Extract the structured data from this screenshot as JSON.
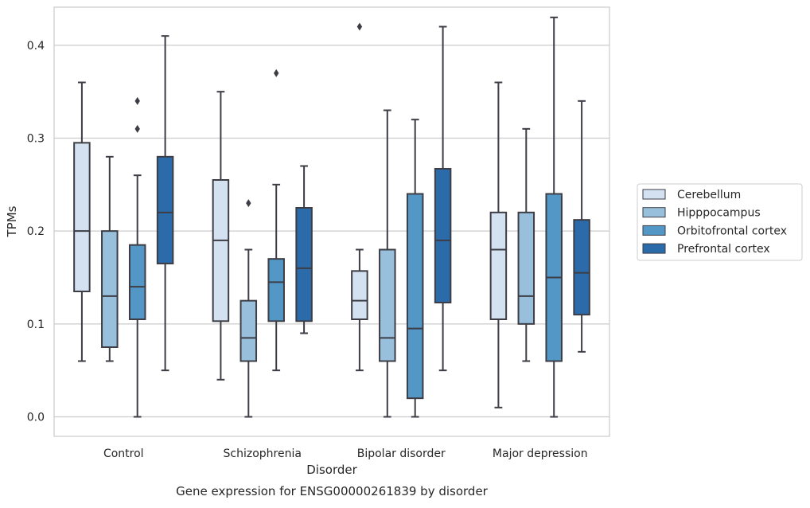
{
  "chart_data": {
    "type": "box",
    "title": "",
    "caption": "Gene expression for ENSG00000261839 by disorder",
    "xlabel": "Disorder",
    "ylabel": "TPMs",
    "ylim": [
      -0.021,
      0.441
    ],
    "yticks": [
      "0.0",
      "0.1",
      "0.2",
      "0.3",
      "0.4"
    ],
    "grid": "horizontal",
    "legend_position": "right",
    "categories": [
      "Control",
      "Schizophrenia",
      "Bipolar disorder",
      "Major depression"
    ],
    "series": [
      {
        "name": "Cerebellum",
        "color": "#d3e1f0",
        "boxes": [
          {
            "whislo": 0.06,
            "q1": 0.135,
            "med": 0.2,
            "q3": 0.295,
            "whishi": 0.36,
            "fliers": []
          },
          {
            "whislo": 0.04,
            "q1": 0.103,
            "med": 0.19,
            "q3": 0.255,
            "whishi": 0.35,
            "fliers": []
          },
          {
            "whislo": 0.05,
            "q1": 0.105,
            "med": 0.125,
            "q3": 0.157,
            "whishi": 0.18,
            "fliers": [
              0.42
            ]
          },
          {
            "whislo": 0.01,
            "q1": 0.105,
            "med": 0.18,
            "q3": 0.22,
            "whishi": 0.36,
            "fliers": []
          }
        ]
      },
      {
        "name": "Hipppocampus",
        "color": "#98c0dc",
        "boxes": [
          {
            "whislo": 0.06,
            "q1": 0.075,
            "med": 0.13,
            "q3": 0.2,
            "whishi": 0.28,
            "fliers": []
          },
          {
            "whislo": 0.0,
            "q1": 0.06,
            "med": 0.085,
            "q3": 0.125,
            "whishi": 0.18,
            "fliers": [
              0.23
            ]
          },
          {
            "whislo": 0.0,
            "q1": 0.06,
            "med": 0.085,
            "q3": 0.18,
            "whishi": 0.33,
            "fliers": []
          },
          {
            "whislo": 0.06,
            "q1": 0.1,
            "med": 0.13,
            "q3": 0.22,
            "whishi": 0.31,
            "fliers": []
          }
        ]
      },
      {
        "name": "Orbitofrontal cortex",
        "color": "#5297c6",
        "boxes": [
          {
            "whislo": 0.0,
            "q1": 0.105,
            "med": 0.14,
            "q3": 0.185,
            "whishi": 0.26,
            "fliers": [
              0.31,
              0.34
            ]
          },
          {
            "whislo": 0.05,
            "q1": 0.103,
            "med": 0.145,
            "q3": 0.17,
            "whishi": 0.25,
            "fliers": [
              0.37
            ]
          },
          {
            "whislo": 0.0,
            "q1": 0.02,
            "med": 0.095,
            "q3": 0.24,
            "whishi": 0.32,
            "fliers": []
          },
          {
            "whislo": 0.0,
            "q1": 0.06,
            "med": 0.15,
            "q3": 0.24,
            "whishi": 0.43,
            "fliers": []
          }
        ]
      },
      {
        "name": "Prefrontal cortex",
        "color": "#2b6ba9",
        "boxes": [
          {
            "whislo": 0.05,
            "q1": 0.165,
            "med": 0.22,
            "q3": 0.28,
            "whishi": 0.41,
            "fliers": []
          },
          {
            "whislo": 0.09,
            "q1": 0.103,
            "med": 0.16,
            "q3": 0.225,
            "whishi": 0.27,
            "fliers": []
          },
          {
            "whislo": 0.05,
            "q1": 0.123,
            "med": 0.19,
            "q3": 0.267,
            "whishi": 0.42,
            "fliers": []
          },
          {
            "whislo": 0.07,
            "q1": 0.11,
            "med": 0.155,
            "q3": 0.212,
            "whishi": 0.34,
            "fliers": []
          }
        ]
      }
    ]
  }
}
